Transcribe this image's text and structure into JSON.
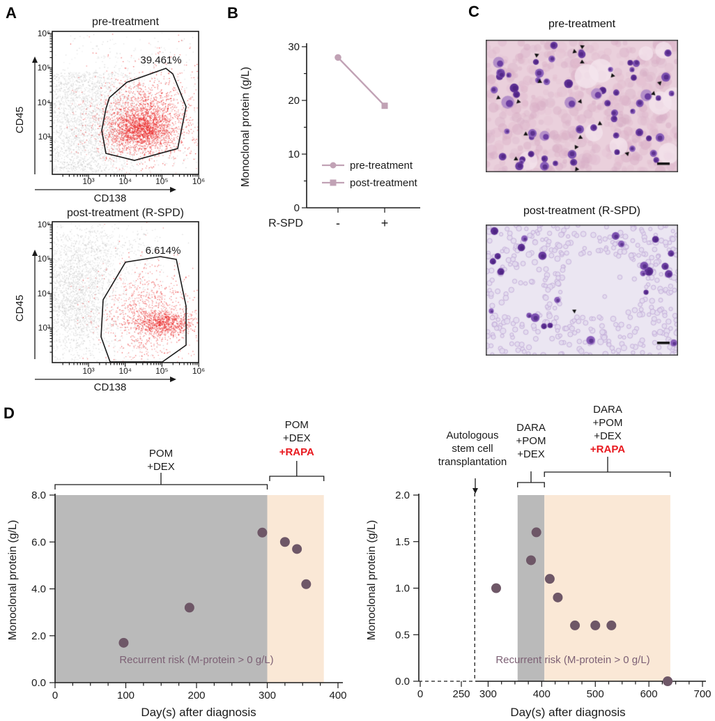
{
  "colors": {
    "accent_red": "#e8191f",
    "flow_red": "#e81717",
    "flow_gray": "#c5c5c5",
    "mauve": "#c1a2b5",
    "point": "#6e5767",
    "risk_text": "#7d6175",
    "region_gray": "#bababa",
    "region_orange": "#fae8d6",
    "micro_pre_bg": "#ead0dc",
    "micro_pre_texture": "#d8aec6",
    "micro_post_bg": "#ebe6f2",
    "micro_cell_purple": "#6f42a3",
    "micro_ring_stroke": "#bfa8d6",
    "micro_ring_fill": "#e3daee"
  },
  "panels": {
    "A": {
      "label": "A",
      "plots": [
        {
          "title": "pre-treatment",
          "gate_percent": "39.461%",
          "xlabel": "CD138",
          "ylabel": "CD45",
          "xticks": [
            "10³",
            "10⁴",
            "10⁵",
            "10⁶"
          ],
          "yticks": [
            "10⁶",
            "10⁵",
            "10⁴",
            "10³"
          ]
        },
        {
          "title": "post-treatment (R-SPD)",
          "gate_percent": "6.614%",
          "xlabel": "CD138",
          "ylabel": "CD45",
          "xticks": [
            "10³",
            "10⁴",
            "10⁵",
            "10⁶"
          ],
          "yticks": [
            "10⁶",
            "10⁵",
            "10⁴",
            "10³"
          ]
        }
      ]
    },
    "B": {
      "label": "B",
      "ylabel": "Monoclonal protein (g/L)",
      "yticks": [
        "30",
        "20",
        "10",
        "0"
      ],
      "xaxis_label": "R-SPD",
      "xticks": [
        "-",
        "+"
      ],
      "legend": [
        "pre-treatment",
        "post-treatment"
      ]
    },
    "C": {
      "label": "C",
      "titles": [
        "pre-treatment",
        "post-treatment (R-SPD)"
      ]
    },
    "D": {
      "label": "D",
      "left": {
        "ylabel": "Monoclonal protein (g/L)",
        "xlabel": "Day(s) after diagnosis",
        "yticks": [
          "8.0",
          "6.0",
          "4.0",
          "2.0",
          "0.0"
        ],
        "xticks": [
          "0",
          "100",
          "200",
          "300",
          "400"
        ],
        "risk_text": "Recurrent risk (M-protein > 0 g/L)",
        "ann1": [
          "POM",
          "+DEX"
        ],
        "ann2": [
          "POM",
          "+DEX",
          "+RAPA"
        ]
      },
      "right": {
        "ylabel": "Monoclonal protein (g/L)",
        "xlabel": "Day(s) after diagnosis",
        "yticks": [
          "2.0",
          "1.5",
          "1.0",
          "0.5",
          "0.0"
        ],
        "xticks": [
          "0",
          "250",
          "300",
          "400",
          "500",
          "600",
          "700"
        ],
        "risk_text": "Recurrent risk (M-protein > 0 g/L)",
        "sct": [
          "Autologous",
          "stem cell",
          "transplantation"
        ],
        "ann1": [
          "DARA",
          "+POM",
          "+DEX"
        ],
        "ann2": [
          "DARA",
          "+POM",
          "+DEX",
          "+RAPA"
        ]
      }
    }
  },
  "chart_data": [
    {
      "id": "A-top",
      "type": "scatter",
      "subtype": "flow-cytometry",
      "title": "pre-treatment",
      "xlabel": "CD138",
      "ylabel": "CD45",
      "x_scale": "log10, decades 10^3 to 10^6",
      "y_scale": "log10, decades 10^3 to 10^6",
      "gate_percent": 39.461,
      "populations": [
        {
          "color": "gray",
          "location": "left half"
        },
        {
          "color": "red",
          "location": "inside polygon gate, CD138-high"
        }
      ]
    },
    {
      "id": "A-bottom",
      "type": "scatter",
      "subtype": "flow-cytometry",
      "title": "post-treatment (R-SPD)",
      "xlabel": "CD138",
      "ylabel": "CD45",
      "x_scale": "log10, decades 10^3 to 10^6",
      "y_scale": "log10, decades 10^3 to 10^6",
      "gate_percent": 6.614,
      "populations": [
        {
          "color": "gray",
          "location": "left half"
        },
        {
          "color": "red",
          "location": "inside polygon gate, CD138-high"
        }
      ]
    },
    {
      "id": "B",
      "type": "line",
      "xlabel": "R-SPD",
      "categories": [
        "-",
        "+"
      ],
      "ylabel": "Monoclonal protein (g/L)",
      "ylim": [
        0,
        30
      ],
      "y_ticks": [
        0,
        10,
        20,
        30
      ],
      "points": [
        {
          "x": "-",
          "y": 28,
          "series": "pre-treatment",
          "marker": "circle"
        },
        {
          "x": "+",
          "y": 19,
          "series": "post-treatment",
          "marker": "square"
        }
      ]
    },
    {
      "id": "D-left",
      "type": "scatter",
      "xlabel": "Day(s) after diagnosis",
      "ylabel": "Monoclonal protein (g/L)",
      "xlim": [
        0,
        400
      ],
      "ylim": [
        0,
        8
      ],
      "x_ticks": [
        0,
        100,
        200,
        300,
        400
      ],
      "y_ticks": [
        0,
        2,
        4,
        6,
        8
      ],
      "points": [
        [
          97,
          1.7
        ],
        [
          190,
          3.2
        ],
        [
          293,
          6.4
        ],
        [
          325,
          6.0
        ],
        [
          342,
          5.7
        ],
        [
          355,
          4.2
        ]
      ],
      "regions": [
        {
          "label": "POM +DEX",
          "from_day": 0,
          "to_day": 300,
          "color_key": "region_gray"
        },
        {
          "label": "POM +DEX +RAPA",
          "from_day": 300,
          "to_day": 380,
          "color_key": "region_orange"
        }
      ],
      "annotation": "Recurrent risk (M-protein > 0 g/L)"
    },
    {
      "id": "D-right",
      "type": "scatter",
      "xlabel": "Day(s) after diagnosis",
      "ylabel": "Monoclonal protein (g/L)",
      "xlim": [
        0,
        700
      ],
      "ylim": [
        0,
        2
      ],
      "x_ticks": [
        0,
        250,
        300,
        400,
        500,
        600,
        700
      ],
      "y_ticks": [
        0,
        0.5,
        1.0,
        1.5,
        2.0
      ],
      "axis_break": {
        "from": 0,
        "to": 250,
        "style": "dashed compressed segment"
      },
      "points": [
        [
          315,
          1.0
        ],
        [
          380,
          1.3
        ],
        [
          390,
          1.6
        ],
        [
          415,
          1.1
        ],
        [
          430,
          0.9
        ],
        [
          462,
          0.6
        ],
        [
          500,
          0.6
        ],
        [
          530,
          0.6
        ],
        [
          635,
          0.0
        ]
      ],
      "events": [
        {
          "label": "Autologous stem cell transplantation",
          "day": 275,
          "style": "dashed vertical line"
        }
      ],
      "regions": [
        {
          "label": "DARA +POM +DEX",
          "from_day": 355,
          "to_day": 405,
          "color_key": "region_gray"
        },
        {
          "label": "DARA +POM +DEX +RAPA",
          "from_day": 405,
          "to_day": 640,
          "color_key": "region_orange"
        }
      ],
      "annotation": "Recurrent risk (M-protein > 0 g/L)"
    }
  ]
}
